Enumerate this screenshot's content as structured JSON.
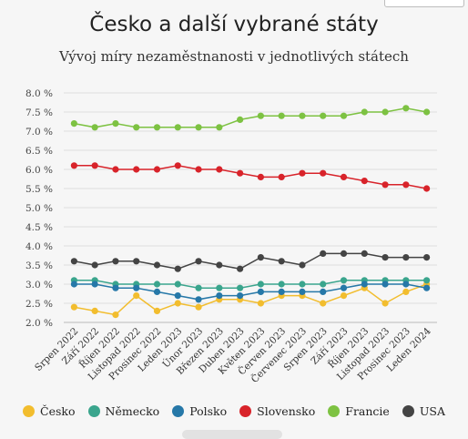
{
  "chart_data": {
    "type": "line",
    "title": "Česko a další vybrané státy",
    "subtitle": "Vývoj míry nezaměstnanosti v jednotlivých státech",
    "xlabel": "",
    "ylabel": "",
    "ylim": [
      2.0,
      8.0
    ],
    "y_ticks": [
      "2.0 %",
      "2.5 %",
      "3.0 %",
      "3.5 %",
      "4.0 %",
      "4.5 %",
      "5.0 %",
      "5.5 %",
      "6.0 %",
      "6.5 %",
      "7.0 %",
      "7.5 %",
      "8.0 %"
    ],
    "grid": "horizontal",
    "legend_placement": "bottom",
    "categories": [
      "Srpen 2022",
      "Září 2022",
      "Říjen 2022",
      "Listopad 2022",
      "Prosinec 2022",
      "Leden 2023",
      "Únor 2023",
      "Březen 2023",
      "Duben 2023",
      "Květen 2023",
      "Červen 2023",
      "Červenec 2023",
      "Srpen 2023",
      "Září 2023",
      "Říjen 2023",
      "Listopad 2023",
      "Prosinec 2023",
      "Leden 2024"
    ],
    "series": [
      {
        "name": "Česko",
        "color": "#f2bd2e",
        "values": [
          2.4,
          2.3,
          2.2,
          2.7,
          2.3,
          2.5,
          2.4,
          2.6,
          2.6,
          2.5,
          2.7,
          2.7,
          2.5,
          2.7,
          2.9,
          2.5,
          2.8,
          3.0
        ]
      },
      {
        "name": "Německo",
        "color": "#3aa58d",
        "values": [
          3.1,
          3.1,
          3.0,
          3.0,
          3.0,
          3.0,
          2.9,
          2.9,
          2.9,
          3.0,
          3.0,
          3.0,
          3.0,
          3.1,
          3.1,
          3.1,
          3.1,
          3.1
        ]
      },
      {
        "name": "Polsko",
        "color": "#2678a8",
        "values": [
          3.0,
          3.0,
          2.9,
          2.9,
          2.8,
          2.7,
          2.6,
          2.7,
          2.7,
          2.8,
          2.8,
          2.8,
          2.8,
          2.9,
          3.0,
          3.0,
          3.0,
          2.9
        ]
      },
      {
        "name": "Slovensko",
        "color": "#d8232a",
        "values": [
          6.1,
          6.1,
          6.0,
          6.0,
          6.0,
          6.1,
          6.0,
          6.0,
          5.9,
          5.8,
          5.8,
          5.9,
          5.9,
          5.8,
          5.7,
          5.6,
          5.6,
          5.5
        ]
      },
      {
        "name": "Francie",
        "color": "#7dc242",
        "values": [
          7.2,
          7.1,
          7.2,
          7.1,
          7.1,
          7.1,
          7.1,
          7.1,
          7.3,
          7.4,
          7.4,
          7.4,
          7.4,
          7.4,
          7.5,
          7.5,
          7.6,
          7.5
        ]
      },
      {
        "name": "USA",
        "color": "#444444",
        "values": [
          3.6,
          3.5,
          3.6,
          3.6,
          3.5,
          3.4,
          3.6,
          3.5,
          3.4,
          3.7,
          3.6,
          3.5,
          3.8,
          3.8,
          3.8,
          3.7,
          3.7,
          3.7
        ]
      }
    ]
  }
}
